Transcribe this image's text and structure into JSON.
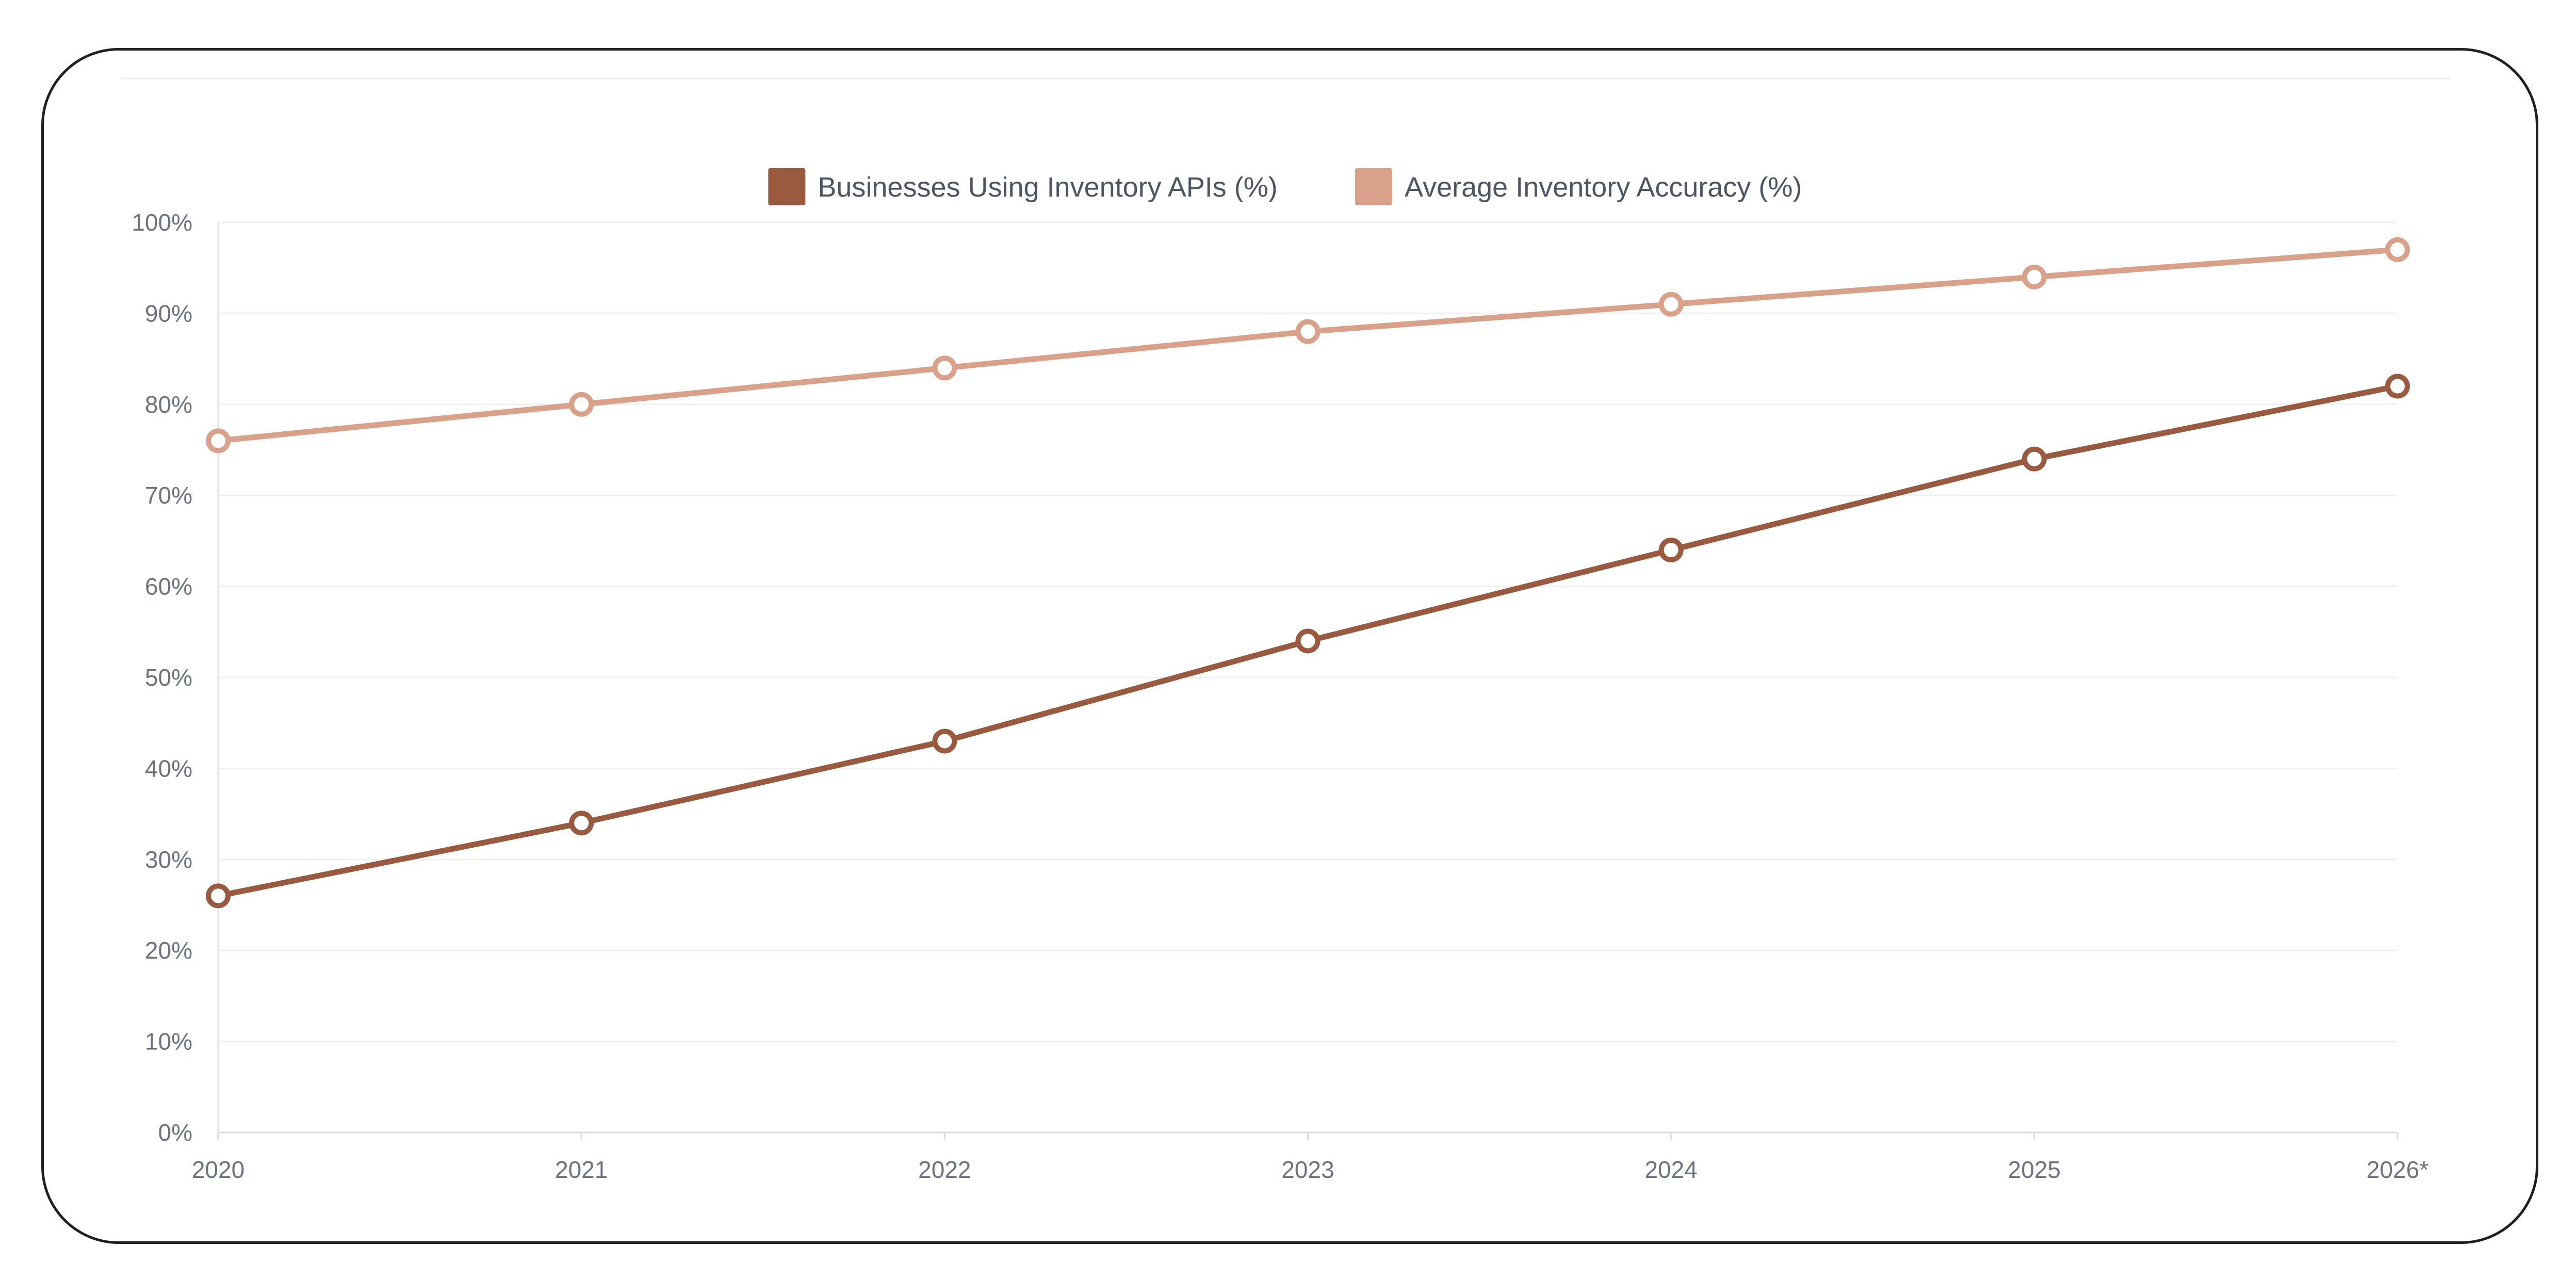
{
  "chart_data": {
    "type": "line",
    "categories": [
      "2020",
      "2021",
      "2022",
      "2023",
      "2024",
      "2025",
      "2026*"
    ],
    "series": [
      {
        "name": "Businesses Using Inventory APIs (%)",
        "color": "#9a5a40",
        "values": [
          26,
          34,
          43,
          54,
          64,
          74,
          82
        ]
      },
      {
        "name": "Average Inventory Accuracy (%)",
        "color": "#d9a08a",
        "values": [
          76,
          80,
          84,
          88,
          91,
          94,
          97
        ]
      }
    ],
    "yticks": [
      "0%",
      "10%",
      "20%",
      "30%",
      "40%",
      "50%",
      "60%",
      "70%",
      "80%",
      "90%",
      "100%"
    ],
    "ylim": [
      0,
      100
    ],
    "grid": true,
    "legend_position": "top-center"
  }
}
